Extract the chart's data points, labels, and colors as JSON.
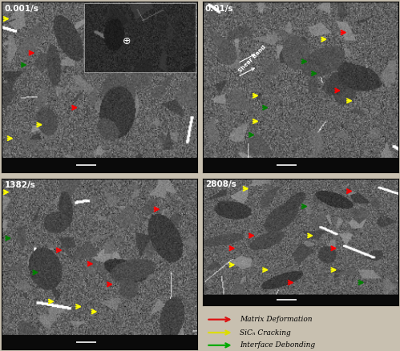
{
  "figsize": [
    4.99,
    4.38
  ],
  "dpi": 100,
  "background_color": "#c8c0b0",
  "panels": [
    {
      "label": "0.001/s",
      "row": 0,
      "col": 0
    },
    {
      "label": "0.01/s",
      "row": 0,
      "col": 1
    },
    {
      "label": "1382/s",
      "row": 1,
      "col": 0
    },
    {
      "label": "2808/s",
      "row": 1,
      "col": 1
    }
  ],
  "legend_entries": [
    {
      "text": "Matrix Deformation",
      "color": "#dd1111"
    },
    {
      "text": "SiCₙ Cracking",
      "color": "#dddd00"
    },
    {
      "text": "Interface Debonding",
      "color": "#00aa00"
    }
  ],
  "label_fontsize": 7.5,
  "legend_fontsize": 6.5
}
